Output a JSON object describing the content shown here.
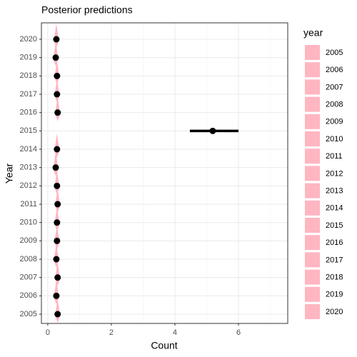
{
  "chart_data": {
    "type": "point-interval",
    "title": "Posterior predictions",
    "x_label": "Count",
    "y_label": "Year",
    "categories": [
      "2005",
      "2006",
      "2007",
      "2008",
      "2009",
      "2010",
      "2011",
      "2012",
      "2013",
      "2014",
      "2015",
      "2016",
      "2017",
      "2018",
      "2019",
      "2020"
    ],
    "values": [
      0.31,
      0.27,
      0.31,
      0.27,
      0.29,
      0.29,
      0.31,
      0.29,
      0.25,
      0.29,
      5.19,
      0.31,
      0.29,
      0.29,
      0.25,
      0.27
    ],
    "lower": [
      null,
      null,
      null,
      null,
      null,
      null,
      null,
      null,
      null,
      null,
      4.47,
      null,
      null,
      null,
      null,
      null
    ],
    "upper": [
      null,
      null,
      null,
      null,
      null,
      null,
      null,
      null,
      null,
      null,
      6.0,
      null,
      null,
      null,
      null,
      null
    ],
    "color": "#ffb6c1",
    "point_color": "#000000",
    "xlim": [
      -0.2,
      7.55
    ],
    "xticks": [
      0,
      2,
      4,
      6
    ],
    "x_minor_ticks": [
      1,
      3,
      5,
      7
    ],
    "grid": true,
    "legend_title": "year"
  }
}
